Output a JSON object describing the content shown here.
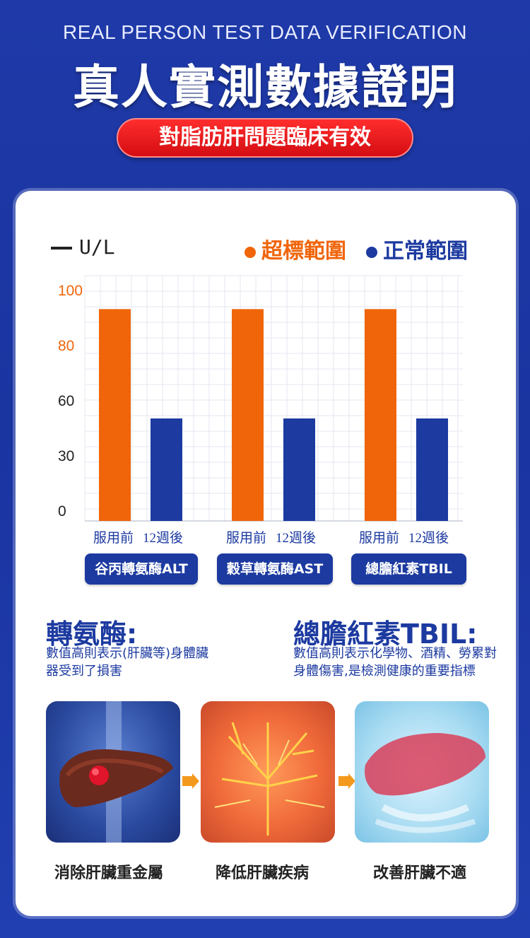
{
  "header": {
    "subtitle_en": "REAL PERSON TEST DATA VERIFICATION",
    "title": "真人實測數據證明",
    "banner": "對脂肪肝問題臨床有效"
  },
  "legend": {
    "unit": "U/L",
    "over_label": "超標範圍",
    "normal_label": "正常範圍"
  },
  "colors": {
    "over": "#f0650a",
    "normal": "#1c3aa0",
    "grid": "#e4e7f0"
  },
  "chart_data": {
    "type": "bar",
    "ylabel": "U/L",
    "y_ticks": [
      "0",
      "30",
      "60",
      "80",
      "100"
    ],
    "groups": [
      "谷丙轉氨酶ALT",
      "穀草轉氨酶AST",
      "總膽紅素TBIL"
    ],
    "bar_labels": [
      "服用前",
      "12週後"
    ],
    "series": [
      {
        "name": "超標範圍",
        "values": [
          93,
          93,
          93
        ]
      },
      {
        "name": "正常範圍",
        "values": [
          50,
          50,
          50
        ]
      }
    ]
  },
  "notes": {
    "left_title": "轉氨酶:",
    "left_text_1": "數值高則表示(肝臟等)身體臟",
    "left_text_2": "器受到了損害",
    "right_title": "總膽紅素TBIL:",
    "right_text_1": "數值高則表示化學物、酒精、勞累對",
    "right_text_2": "身體傷害,是檢測健康的重要指標"
  },
  "images": {
    "captions": [
      "消除肝臟重金屬",
      "降低肝臟疾病",
      "改善肝臟不適"
    ]
  }
}
